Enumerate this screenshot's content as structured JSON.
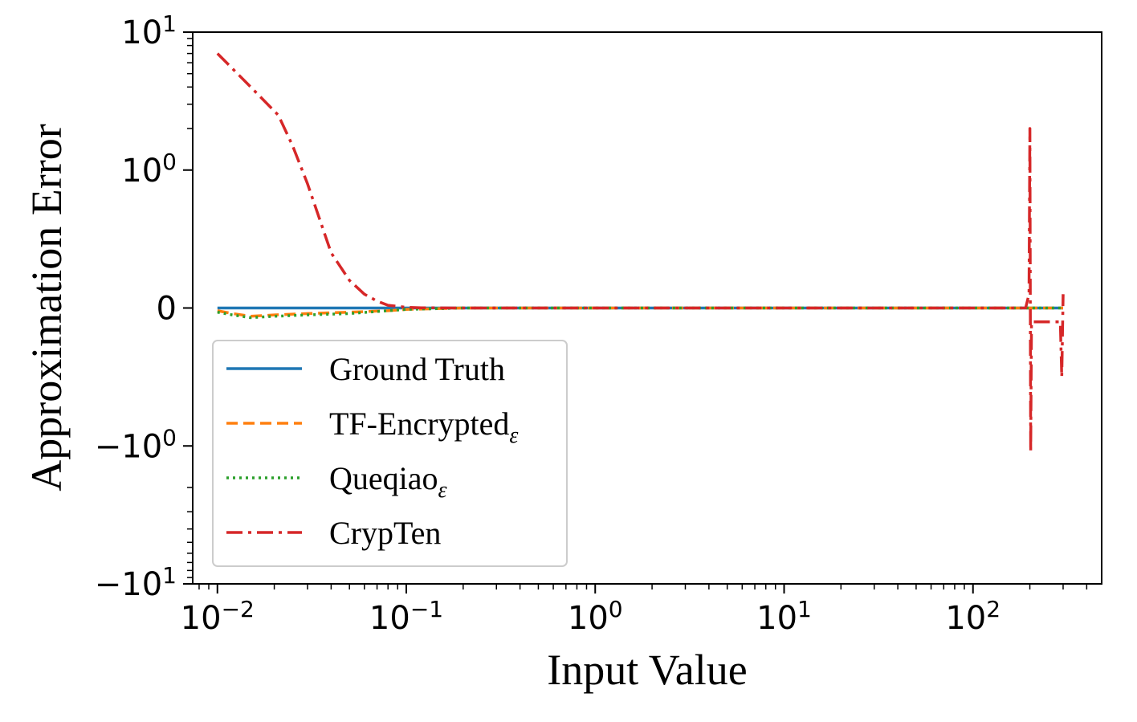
{
  "chart_data": {
    "type": "line",
    "title": "",
    "xlabel": "Input Value",
    "ylabel": "Approximation Error",
    "xscale": "log",
    "yscale": "symlog",
    "xlim": [
      0.0074,
      480
    ],
    "ylim": [
      -10,
      10
    ],
    "grid": false,
    "legend_position": "lower-left",
    "x_ticks": [
      {
        "value": 0.01,
        "base": "10",
        "exp": "−2"
      },
      {
        "value": 0.1,
        "base": "10",
        "exp": "−1"
      },
      {
        "value": 1,
        "base": "10",
        "exp": "0"
      },
      {
        "value": 10,
        "base": "10",
        "exp": "1"
      },
      {
        "value": 100,
        "base": "10",
        "exp": "2"
      }
    ],
    "y_ticks": [
      {
        "value": 10,
        "base": "10",
        "exp": "1"
      },
      {
        "value": 1,
        "base": "10",
        "exp": "0"
      },
      {
        "value": 0,
        "base": "0",
        "exp": ""
      },
      {
        "value": -1,
        "base": "−10",
        "exp": "0"
      },
      {
        "value": -10,
        "base": "−10",
        "exp": "1"
      }
    ],
    "series": [
      {
        "name": "Ground Truth",
        "subscript": "",
        "color": "#1f77b4",
        "dash": "solid",
        "x": [
          0.01,
          0.1,
          1,
          10,
          100,
          300
        ],
        "y": [
          0,
          0,
          0,
          0,
          0,
          0
        ]
      },
      {
        "name": "TF-Encrypted",
        "subscript": "ε",
        "color": "#ff7f0e",
        "dash": "dashed",
        "x": [
          0.01,
          0.012,
          0.015,
          0.02,
          0.03,
          0.05,
          0.08,
          0.1,
          0.2,
          1,
          10,
          100,
          300
        ],
        "y": [
          -0.02,
          -0.04,
          -0.06,
          -0.05,
          -0.04,
          -0.03,
          -0.02,
          -0.01,
          0,
          0,
          0,
          0,
          0
        ]
      },
      {
        "name": "Queqiao",
        "subscript": "ε",
        "color": "#2ca02c",
        "dash": "dotted",
        "x": [
          0.01,
          0.012,
          0.015,
          0.02,
          0.03,
          0.05,
          0.08,
          0.1,
          0.2,
          1,
          10,
          100,
          300
        ],
        "y": [
          -0.03,
          -0.05,
          -0.07,
          -0.06,
          -0.05,
          -0.04,
          -0.02,
          -0.01,
          0,
          0,
          0,
          0,
          0
        ]
      },
      {
        "name": "CrypTen",
        "subscript": "",
        "color": "#d62728",
        "dash": "dashdot",
        "x": [
          0.01,
          0.015,
          0.021,
          0.025,
          0.03,
          0.04,
          0.05,
          0.06,
          0.07,
          0.08,
          0.1,
          0.12,
          0.2,
          0.5,
          1,
          10,
          100,
          190,
          198,
          200,
          202,
          204,
          206,
          240,
          290,
          295,
          300
        ],
        "y": [
          7.0,
          4.0,
          2.5,
          1.5,
          0.9,
          0.4,
          0.2,
          0.1,
          0.05,
          0.02,
          0.005,
          0.002,
          0,
          0,
          0,
          0,
          0,
          0,
          0.1,
          2.0,
          -1.1,
          -0.1,
          -0.1,
          -0.1,
          -0.1,
          -0.5,
          0.1
        ]
      }
    ]
  }
}
